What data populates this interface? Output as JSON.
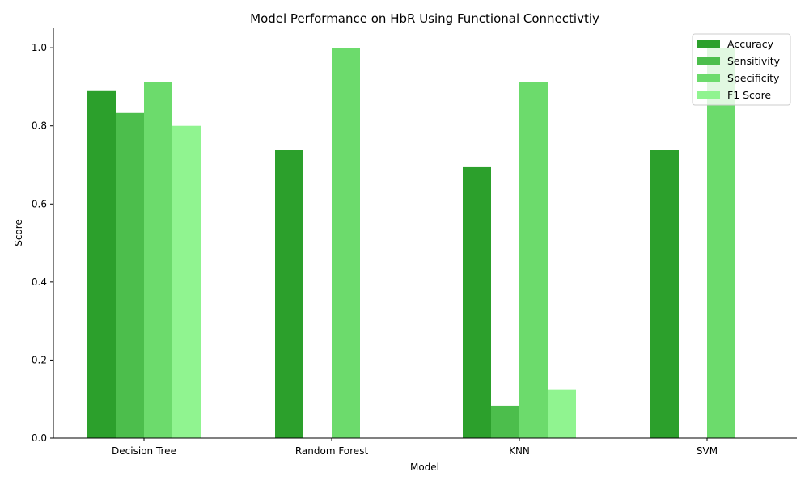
{
  "chart_data": {
    "type": "bar",
    "title": "Model Performance on HbR Using Functional Connectivtiy",
    "xlabel": "Model",
    "ylabel": "Score",
    "ylim": [
      0,
      1.05
    ],
    "yticks": [
      "0.0",
      "0.2",
      "0.4",
      "0.6",
      "0.8",
      "1.0"
    ],
    "categories": [
      "Decision Tree",
      "Random Forest",
      "KNN",
      "SVM"
    ],
    "series": [
      {
        "name": "Accuracy",
        "color": "#2ca02c",
        "values": [
          0.891,
          0.739,
          0.696,
          0.739
        ]
      },
      {
        "name": "Sensitivity",
        "color": "#4cbe4c",
        "values": [
          0.833,
          0.0,
          0.083,
          0.0
        ]
      },
      {
        "name": "Specificity",
        "color": "#6cdb6c",
        "values": [
          0.912,
          1.0,
          0.912,
          1.0
        ]
      },
      {
        "name": "F1 Score",
        "color": "#90f490",
        "values": [
          0.8,
          0.0,
          0.125,
          0.0
        ]
      }
    ],
    "grid": false,
    "legend_position": "top-right"
  }
}
